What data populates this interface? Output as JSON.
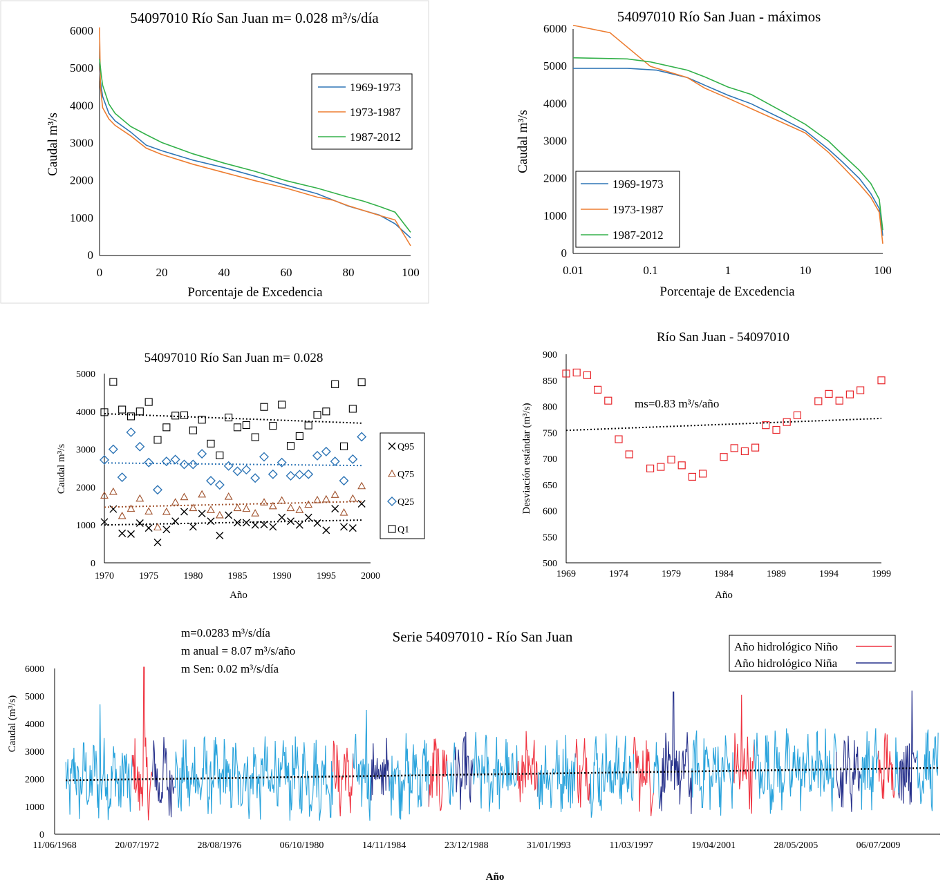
{
  "chart_data": [
    {
      "id": "c1",
      "type": "line",
      "title": "54097010  Río San Juan m= 0.028 m³/s/día",
      "xlabel": "Porcentaje de Excedencia",
      "ylabel": "Caudal m³/s",
      "xlim": [
        0,
        100
      ],
      "ylim": [
        0,
        6000
      ],
      "x_ticks": [
        "0",
        "20",
        "40",
        "60",
        "80",
        "100"
      ],
      "y_ticks": [
        "0",
        "1000",
        "2000",
        "3000",
        "4000",
        "5000",
        "6000"
      ],
      "legend_position": "right",
      "series": [
        {
          "name": "1969-1973",
          "color": "#2e75b6",
          "points": [
            [
              0,
              4950
            ],
            [
              0.2,
              4700
            ],
            [
              1,
              4250
            ],
            [
              3,
              3800
            ],
            [
              5,
              3600
            ],
            [
              10,
              3300
            ],
            [
              15,
              2950
            ],
            [
              20,
              2800
            ],
            [
              30,
              2550
            ],
            [
              40,
              2350
            ],
            [
              50,
              2120
            ],
            [
              60,
              1880
            ],
            [
              70,
              1650
            ],
            [
              80,
              1320
            ],
            [
              90,
              1080
            ],
            [
              95,
              850
            ],
            [
              100,
              470
            ]
          ]
        },
        {
          "name": "1973-1987",
          "color": "#ed7d31",
          "points": [
            [
              0,
              6100
            ],
            [
              0.3,
              4500
            ],
            [
              1,
              3950
            ],
            [
              3,
              3650
            ],
            [
              5,
              3480
            ],
            [
              10,
              3200
            ],
            [
              15,
              2870
            ],
            [
              20,
              2700
            ],
            [
              30,
              2440
            ],
            [
              40,
              2220
            ],
            [
              50,
              2000
            ],
            [
              60,
              1800
            ],
            [
              70,
              1560
            ],
            [
              75,
              1480
            ],
            [
              80,
              1330
            ],
            [
              90,
              1070
            ],
            [
              95,
              950
            ],
            [
              100,
              260
            ]
          ]
        },
        {
          "name": "1987-2012",
          "color": "#33b14a",
          "points": [
            [
              0,
              5250
            ],
            [
              0.5,
              4850
            ],
            [
              1,
              4550
            ],
            [
              3,
              4050
            ],
            [
              5,
              3800
            ],
            [
              10,
              3450
            ],
            [
              15,
              3230
            ],
            [
              20,
              3020
            ],
            [
              30,
              2720
            ],
            [
              40,
              2470
            ],
            [
              50,
              2250
            ],
            [
              60,
              2000
            ],
            [
              70,
              1800
            ],
            [
              80,
              1560
            ],
            [
              85,
              1450
            ],
            [
              90,
              1310
            ],
            [
              95,
              1160
            ],
            [
              100,
              620
            ]
          ]
        }
      ]
    },
    {
      "id": "c2",
      "type": "line",
      "title": "54097010  Río San Juan - máximos",
      "xlabel": "Porcentaje de Excedencia",
      "ylabel": "Caudal m³/s",
      "xscale": "log",
      "xlim": [
        0.01,
        100
      ],
      "ylim": [
        0,
        6000
      ],
      "x_ticks": [
        "0.01",
        "0.1",
        "1",
        "10",
        "100"
      ],
      "y_ticks": [
        "0",
        "1000",
        "2000",
        "3000",
        "4000",
        "5000",
        "6000"
      ],
      "legend_position": "bottom-left",
      "series": [
        {
          "name": "1969-1973",
          "color": "#2e75b6",
          "points": [
            [
              0.01,
              4950
            ],
            [
              0.05,
              4950
            ],
            [
              0.12,
              4900
            ],
            [
              0.3,
              4700
            ],
            [
              0.5,
              4500
            ],
            [
              1,
              4230
            ],
            [
              2,
              4000
            ],
            [
              5,
              3600
            ],
            [
              10,
              3280
            ],
            [
              20,
              2780
            ],
            [
              30,
              2450
            ],
            [
              50,
              2000
            ],
            [
              70,
              1600
            ],
            [
              90,
              1200
            ],
            [
              100,
              470
            ]
          ]
        },
        {
          "name": "1973-1987",
          "color": "#ed7d31",
          "points": [
            [
              0.01,
              6100
            ],
            [
              0.03,
              5900
            ],
            [
              0.1,
              5000
            ],
            [
              0.3,
              4700
            ],
            [
              0.5,
              4420
            ],
            [
              1,
              4150
            ],
            [
              2,
              3870
            ],
            [
              5,
              3500
            ],
            [
              10,
              3220
            ],
            [
              20,
              2700
            ],
            [
              30,
              2330
            ],
            [
              50,
              1850
            ],
            [
              70,
              1500
            ],
            [
              90,
              1100
            ],
            [
              100,
              260
            ]
          ]
        },
        {
          "name": "1987-2012",
          "color": "#33b14a",
          "points": [
            [
              0.01,
              5230
            ],
            [
              0.05,
              5200
            ],
            [
              0.1,
              5120
            ],
            [
              0.3,
              4900
            ],
            [
              0.5,
              4720
            ],
            [
              1,
              4450
            ],
            [
              2,
              4250
            ],
            [
              5,
              3800
            ],
            [
              10,
              3450
            ],
            [
              20,
              3000
            ],
            [
              30,
              2650
            ],
            [
              50,
              2220
            ],
            [
              70,
              1870
            ],
            [
              90,
              1450
            ],
            [
              100,
              620
            ]
          ]
        }
      ]
    },
    {
      "id": "c3",
      "type": "scatter",
      "title": "54097010  Río San Juan  m=  0.028",
      "xlabel": "Año",
      "ylabel": "Caudal m³/s",
      "xlim": [
        1970,
        2000
      ],
      "ylim": [
        0,
        5000
      ],
      "x_ticks": [
        "1970",
        "1975",
        "1980",
        "1985",
        "1990",
        "1995",
        "2000"
      ],
      "y_ticks": [
        "0",
        "1000",
        "2000",
        "3000",
        "4000",
        "5000"
      ],
      "legend_position": "right",
      "series": [
        {
          "name": "Q95",
          "marker": "x",
          "color": "#000000",
          "trend_color": "#000000",
          "trend": [
            1000,
            1130
          ],
          "values": [
            1080,
            1420,
            780,
            760,
            1050,
            920,
            540,
            880,
            1100,
            1350,
            950,
            1300,
            1100,
            720,
            1260,
            1060,
            1060,
            1000,
            1010,
            950,
            1200,
            1100,
            1000,
            1200,
            1050,
            860,
            1430,
            950,
            920,
            1560
          ]
        },
        {
          "name": "Q75",
          "marker": "triangle",
          "color": "#a0522d",
          "trend_color": "#a0522d",
          "trend": [
            1470,
            1620
          ],
          "values": [
            1780,
            1880,
            1240,
            1430,
            1700,
            1360,
            940,
            1350,
            1600,
            1740,
            1450,
            1810,
            1400,
            1260,
            1750,
            1450,
            1430,
            1310,
            1600,
            1500,
            1650,
            1450,
            1400,
            1540,
            1660,
            1680,
            1800,
            1330,
            1700,
            2030
          ]
        },
        {
          "name": "Q25",
          "marker": "diamond",
          "color": "#2e75b6",
          "trend_color": "#2e75b6",
          "trend": [
            2640,
            2570
          ],
          "values": [
            2720,
            3000,
            2260,
            3450,
            3070,
            2650,
            1930,
            2680,
            2730,
            2600,
            2600,
            2880,
            2170,
            2060,
            2560,
            2420,
            2460,
            2240,
            2800,
            2340,
            2650,
            2300,
            2330,
            2340,
            2830,
            2940,
            2680,
            2170,
            2740,
            3330
          ]
        },
        {
          "name": "Q1",
          "marker": "square",
          "color": "#000000",
          "trend_color": "#000000",
          "trend": [
            3940,
            3690
          ],
          "values": [
            3980,
            4780,
            4050,
            3870,
            4000,
            4250,
            3250,
            3580,
            3890,
            3900,
            3500,
            3780,
            3150,
            2840,
            3840,
            3580,
            3640,
            3320,
            4120,
            3620,
            4180,
            3090,
            3350,
            3630,
            3910,
            4000,
            4720,
            3080,
            4070,
            4770
          ]
        }
      ]
    },
    {
      "id": "c4",
      "type": "scatter",
      "title": "Río San Juan - 54097010",
      "xlabel": "Año",
      "ylabel": "Desviación estándar (m³/s)",
      "xlim": [
        1969,
        1999
      ],
      "ylim": [
        500,
        900
      ],
      "x_ticks": [
        "1969",
        "1974",
        "1979",
        "1984",
        "1989",
        "1994",
        "1999"
      ],
      "y_ticks": [
        "500",
        "550",
        "600",
        "650",
        "700",
        "750",
        "800",
        "850",
        "900"
      ],
      "annotation": "ms=0.83 m³/s/año",
      "marker_color": "#e8262b",
      "trend": [
        [
          1969,
          754
        ],
        [
          1999,
          777
        ]
      ],
      "points": [
        [
          1969,
          863
        ],
        [
          1970,
          865
        ],
        [
          1971,
          860
        ],
        [
          1972,
          832
        ],
        [
          1973,
          811
        ],
        [
          1974,
          737
        ],
        [
          1975,
          708
        ],
        [
          1977,
          681
        ],
        [
          1978,
          684
        ],
        [
          1979,
          698
        ],
        [
          1980,
          687
        ],
        [
          1981,
          665
        ],
        [
          1982,
          671
        ],
        [
          1984,
          703
        ],
        [
          1985,
          720
        ],
        [
          1986,
          714
        ],
        [
          1987,
          721
        ],
        [
          1988,
          764
        ],
        [
          1989,
          755
        ],
        [
          1990,
          770
        ],
        [
          1991,
          783
        ],
        [
          1993,
          810
        ],
        [
          1994,
          824
        ],
        [
          1995,
          811
        ],
        [
          1996,
          823
        ],
        [
          1997,
          831
        ],
        [
          1999,
          850
        ]
      ]
    },
    {
      "id": "c5",
      "type": "line",
      "title": "Serie 54097010 - Río San Juan",
      "xlabel": "Año",
      "ylabel": "Caudal (m³/s)",
      "ylim": [
        0,
        6000
      ],
      "x_ticks": [
        "11/06/1968",
        "20/07/1972",
        "28/08/1976",
        "06/10/1980",
        "14/11/1984",
        "23/12/1988",
        "31/01/1993",
        "11/03/1997",
        "19/04/2001",
        "28/05/2005",
        "06/07/2009"
      ],
      "y_ticks": [
        "0",
        "1000",
        "2000",
        "3000",
        "4000",
        "5000",
        "6000"
      ],
      "x_range_years": [
        1968.44,
        2012.6
      ],
      "data_range_years": [
        1969.0,
        2012.5
      ],
      "legend_position": "top-right",
      "annotations": [
        "m=0.0283 m³/s/día",
        "m anual = 8.07 m³/s/año",
        "m Sen: 0.02 m³/s/día"
      ],
      "trend": [
        [
          1969.0,
          1950
        ],
        [
          2012.5,
          2400
        ]
      ],
      "base_color": "#29a3dc",
      "legend": [
        {
          "name": "Año hidrológico Niño",
          "color": "#ef3340"
        },
        {
          "name": "Año hidrológico Niña",
          "color": "#27318b"
        }
      ],
      "nino_periods": [
        [
          1972.3,
          1973.3
        ],
        [
          1982.3,
          1983.3
        ],
        [
          1987.1,
          1988.0
        ],
        [
          1991.5,
          1992.5
        ],
        [
          1994.4,
          1995.1
        ],
        [
          1997.3,
          1998.3
        ],
        [
          2002.3,
          2003.3
        ],
        [
          2009.5,
          2010.3
        ]
      ],
      "nina_periods": [
        [
          1973.3,
          1974.4
        ],
        [
          1984.2,
          1985.1
        ],
        [
          1988.4,
          1989.3
        ],
        [
          1998.6,
          2000.2
        ],
        [
          2007.4,
          2008.6
        ],
        [
          2010.5,
          2011.4
        ]
      ],
      "peaks": [
        [
          1972.9,
          6050
        ],
        [
          2002.7,
          5050
        ],
        [
          2011.2,
          5200
        ],
        [
          1984.0,
          4500
        ],
        [
          1999.3,
          5150
        ],
        [
          1970.7,
          4700
        ]
      ]
    }
  ]
}
